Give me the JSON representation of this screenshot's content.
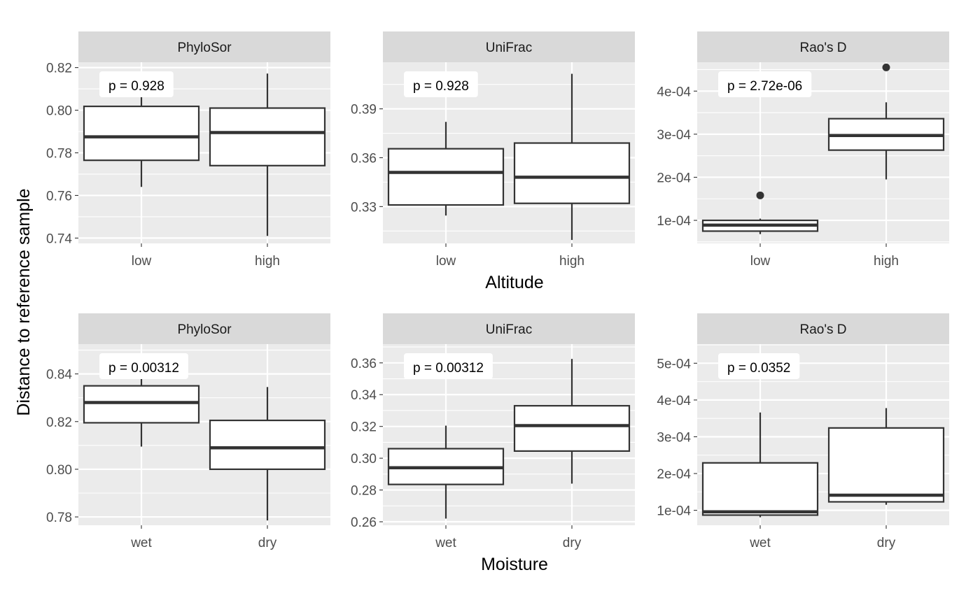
{
  "figure": {
    "y_axis_title": "Distance to reference sample",
    "rows": [
      {
        "x_axis_title": "Altitude"
      },
      {
        "x_axis_title": "Moisture"
      }
    ]
  },
  "colors": {
    "panel_background": "#ebebeb",
    "strip_background": "#d9d9d9",
    "grid": "#ffffff",
    "box_line": "#333333",
    "box_fill": "#ffffff"
  },
  "chart_data": [
    {
      "type": "box",
      "strip": "PhyloSor",
      "xlabel": "",
      "categories": [
        "low",
        "high"
      ],
      "ylim": [
        0.7375,
        0.8225
      ],
      "yticks": [
        0.74,
        0.76,
        0.78,
        0.8,
        0.82
      ],
      "ytick_labels": [
        "0.74",
        "0.76",
        "0.78",
        "0.80",
        "0.82"
      ],
      "annotation": "p = 0.928",
      "boxes": [
        {
          "category": "low",
          "whisker_low": 0.764,
          "q1": 0.7765,
          "median": 0.7875,
          "q3": 0.8018,
          "whisker_high": 0.8063,
          "outliers": []
        },
        {
          "category": "high",
          "whisker_low": 0.741,
          "q1": 0.774,
          "median": 0.7895,
          "q3": 0.801,
          "whisker_high": 0.8172,
          "outliers": []
        }
      ]
    },
    {
      "type": "box",
      "strip": "UniFrac",
      "xlabel": "Altitude",
      "categories": [
        "low",
        "high"
      ],
      "ylim": [
        0.3074,
        0.4186
      ],
      "yticks": [
        0.33,
        0.36,
        0.39
      ],
      "ytick_labels": [
        "0.33",
        "0.36",
        "0.39"
      ],
      "annotation": "p = 0.928",
      "boxes": [
        {
          "category": "low",
          "whisker_low": 0.3245,
          "q1": 0.331,
          "median": 0.351,
          "q3": 0.3655,
          "whisker_high": 0.382,
          "outliers": []
        },
        {
          "category": "high",
          "whisker_low": 0.3095,
          "q1": 0.332,
          "median": 0.348,
          "q3": 0.369,
          "whisker_high": 0.4115,
          "outliers": []
        }
      ]
    },
    {
      "type": "box",
      "strip": "Rao's D",
      "xlabel": "",
      "categories": [
        "low",
        "high"
      ],
      "ylim": [
        4.65e-05,
        0.000467
      ],
      "yticks": [
        0.0001,
        0.0002,
        0.0003,
        0.0004
      ],
      "ytick_labels": [
        "1e-04",
        "2e-04",
        "3e-04",
        "4e-04"
      ],
      "annotation": "p = 2.72e-06",
      "boxes": [
        {
          "category": "low",
          "whisker_low": 6.8e-05,
          "q1": 7.5e-05,
          "median": 8.9e-05,
          "q3": 0.0001,
          "whisker_high": 0.000104,
          "outliers": [
            0.000158
          ]
        },
        {
          "category": "high",
          "whisker_low": 0.000195,
          "q1": 0.000263,
          "median": 0.000297,
          "q3": 0.000336,
          "whisker_high": 0.000374,
          "outliers": [
            0.000455
          ]
        }
      ]
    },
    {
      "type": "box",
      "strip": "PhyloSor",
      "xlabel": "",
      "categories": [
        "wet",
        "dry"
      ],
      "ylim": [
        0.7765,
        0.8525
      ],
      "yticks": [
        0.78,
        0.8,
        0.82,
        0.84
      ],
      "ytick_labels": [
        "0.78",
        "0.80",
        "0.82",
        "0.84"
      ],
      "annotation": "p = 0.00312",
      "boxes": [
        {
          "category": "wet",
          "whisker_low": 0.8095,
          "q1": 0.8195,
          "median": 0.828,
          "q3": 0.835,
          "whisker_high": 0.843,
          "outliers": []
        },
        {
          "category": "dry",
          "whisker_low": 0.7785,
          "q1": 0.8,
          "median": 0.809,
          "q3": 0.8205,
          "whisker_high": 0.8345,
          "outliers": []
        }
      ]
    },
    {
      "type": "box",
      "strip": "UniFrac",
      "xlabel": "Moisture",
      "categories": [
        "wet",
        "dry"
      ],
      "ylim": [
        0.2578,
        0.3718
      ],
      "yticks": [
        0.26,
        0.28,
        0.3,
        0.32,
        0.34,
        0.36
      ],
      "ytick_labels": [
        "0.26",
        "0.28",
        "0.30",
        "0.32",
        "0.34",
        "0.36"
      ],
      "annotation": "p = 0.00312",
      "boxes": [
        {
          "category": "wet",
          "whisker_low": 0.262,
          "q1": 0.2835,
          "median": 0.294,
          "q3": 0.306,
          "whisker_high": 0.3205,
          "outliers": []
        },
        {
          "category": "dry",
          "whisker_low": 0.284,
          "q1": 0.3045,
          "median": 0.3205,
          "q3": 0.333,
          "whisker_high": 0.3625,
          "outliers": []
        }
      ]
    },
    {
      "type": "box",
      "strip": "Rao's D",
      "xlabel": "",
      "categories": [
        "wet",
        "dry"
      ],
      "ylim": [
        5.93e-05,
        0.000552
      ],
      "yticks": [
        0.0001,
        0.0002,
        0.0003,
        0.0004,
        0.0005
      ],
      "ytick_labels": [
        "1e-04",
        "2e-04",
        "3e-04",
        "4e-04",
        "5e-04"
      ],
      "annotation": "p = 0.0352",
      "boxes": [
        {
          "category": "wet",
          "whisker_low": 8.1e-05,
          "q1": 8.7e-05,
          "median": 9.6e-05,
          "q3": 0.000229,
          "whisker_high": 0.000366,
          "outliers": []
        },
        {
          "category": "dry",
          "whisker_low": 0.000115,
          "q1": 0.000123,
          "median": 0.000141,
          "q3": 0.000324,
          "whisker_high": 0.000378,
          "outliers": []
        }
      ]
    }
  ]
}
